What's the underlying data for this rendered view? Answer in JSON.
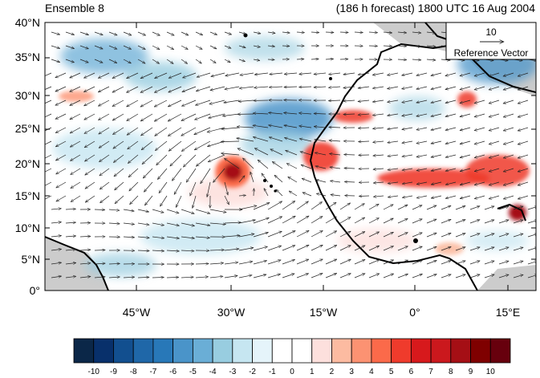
{
  "header": {
    "left": "Ensemble 8",
    "right": "(186 h forecast) 1800 UTC 16 Aug 2004"
  },
  "axes": {
    "y_ticks": [
      "40°N",
      "35°N",
      "30°N",
      "25°N",
      "20°N",
      "15°N",
      "10°N",
      "5°N",
      "0°"
    ],
    "x_ticks": [
      "45°W",
      "30°W",
      "15°W",
      "0°",
      "15°E"
    ]
  },
  "reference_vector": {
    "value": "10",
    "label": "Reference Vector"
  },
  "colorbar": {
    "labels": [
      "-10",
      "-9",
      "-8",
      "-7",
      "-6",
      "-5",
      "-4",
      "-3",
      "-2",
      "-1",
      "0",
      "1",
      "2",
      "3",
      "4",
      "5",
      "6",
      "7",
      "8",
      "9",
      "10"
    ],
    "colors": [
      "#0b2748",
      "#08306b",
      "#124f8f",
      "#1f67a8",
      "#2878b8",
      "#4a94c9",
      "#6aaed6",
      "#98cde0",
      "#c6e6f1",
      "#e5f4fa",
      "#ffffff",
      "#ffffff",
      "#fde0dd",
      "#fcbba1",
      "#fc9272",
      "#fb6a4a",
      "#ef3b2c",
      "#d7191c",
      "#cb181d",
      "#a50f15",
      "#7f0000",
      "#67000d"
    ]
  },
  "colors": {
    "land_gray": "#cccccc",
    "coast": "#000000",
    "vector": "#222222"
  }
}
